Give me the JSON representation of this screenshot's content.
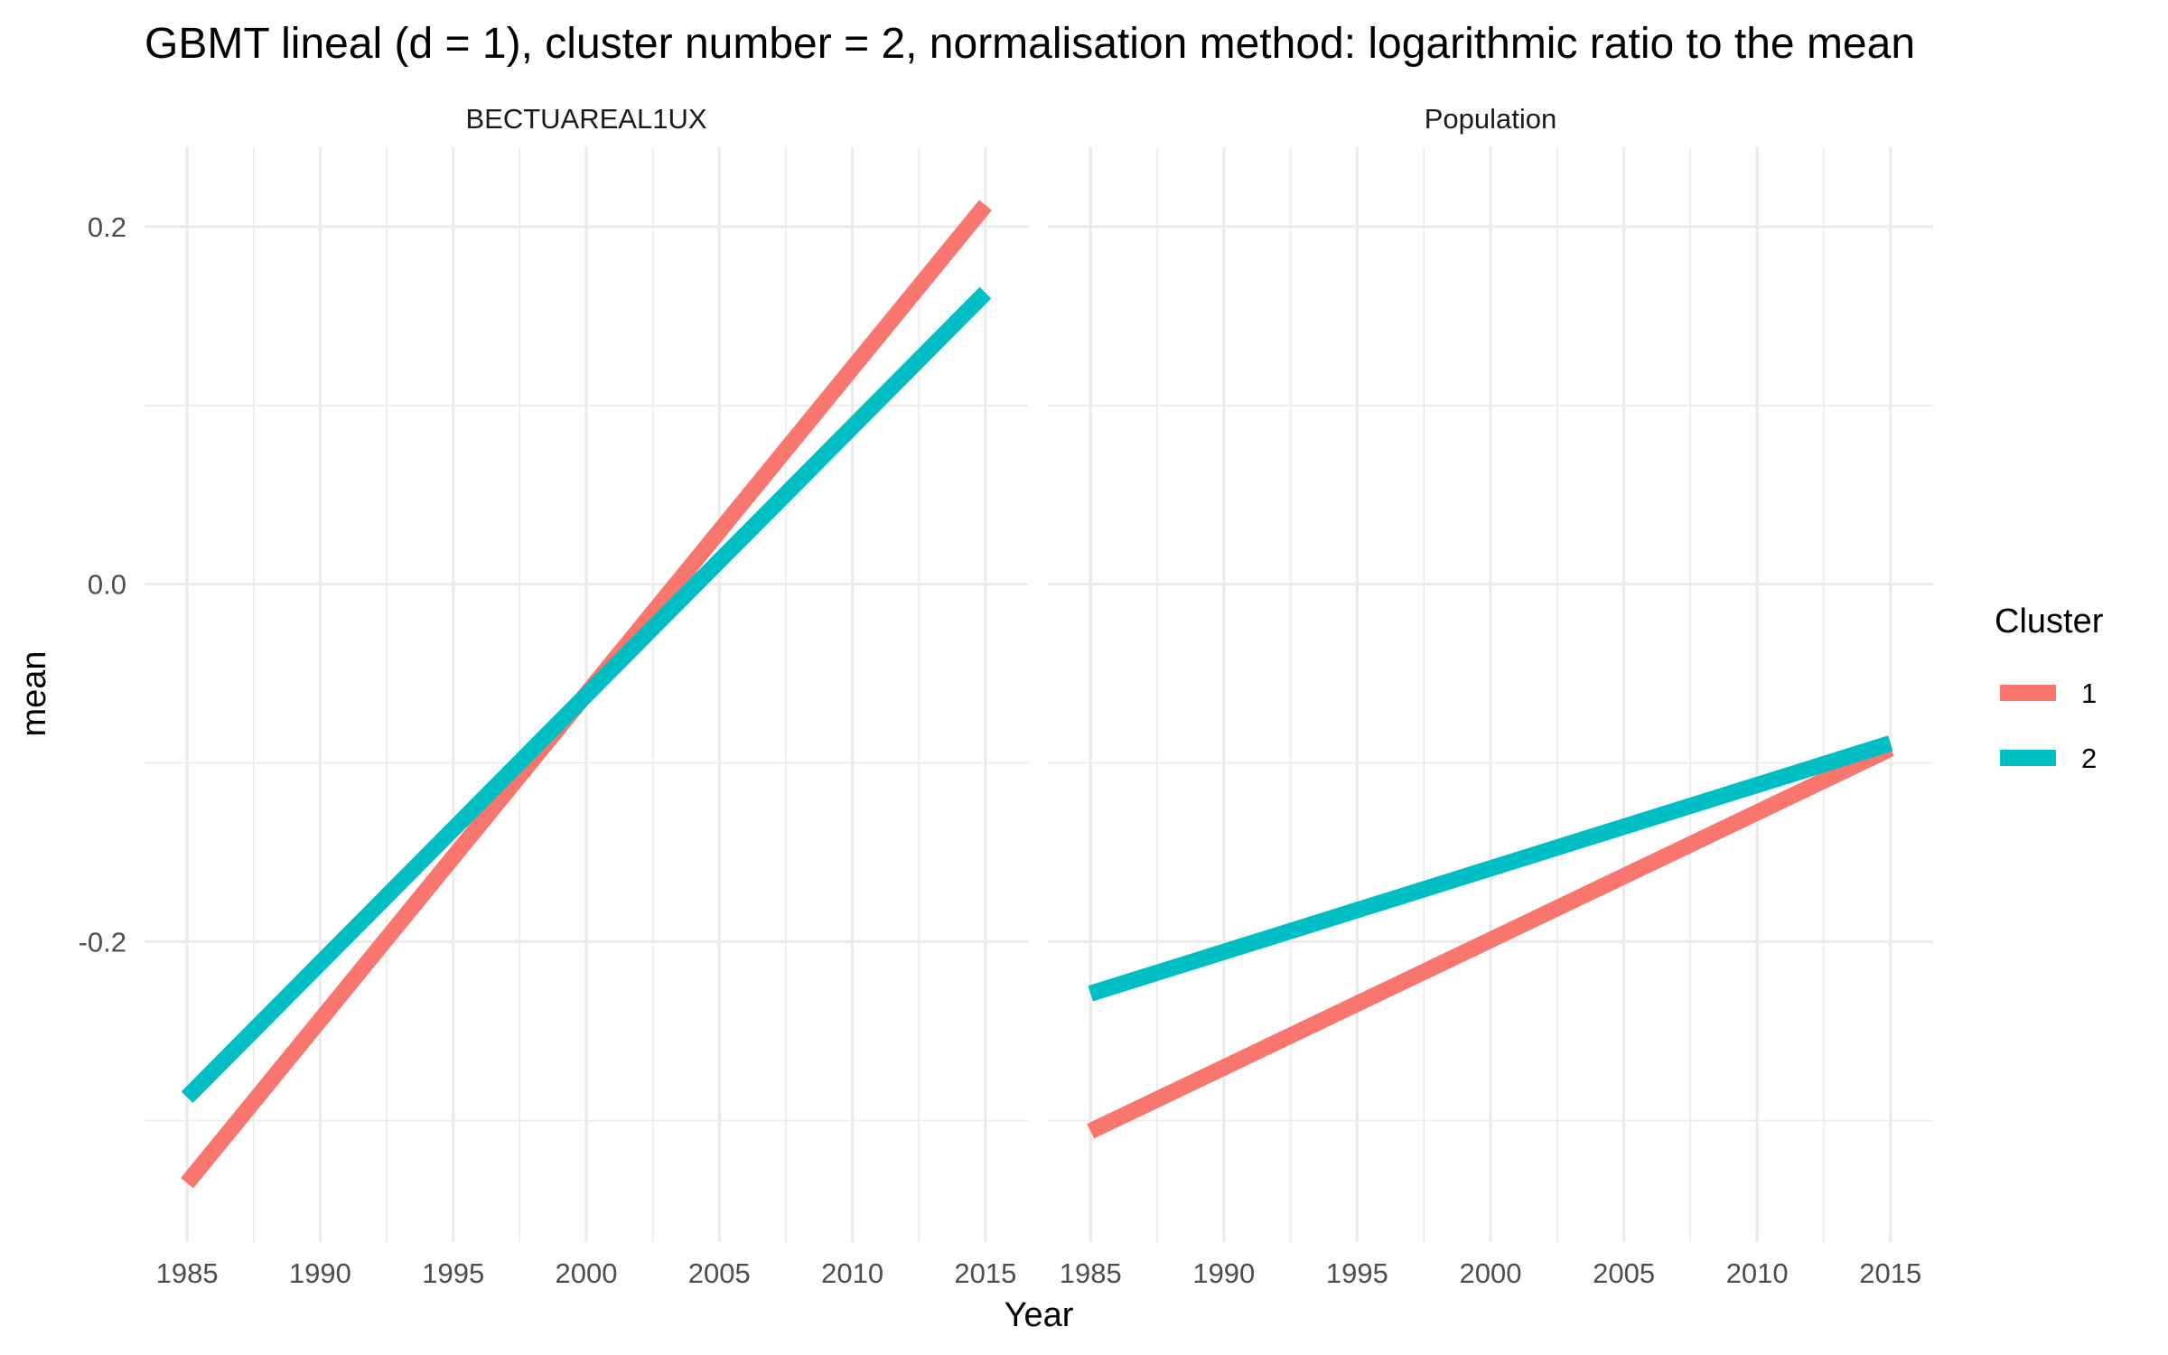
{
  "chart_data": {
    "type": "line",
    "title": "GBMT lineal (d = 1), cluster number = 2, normalisation method: logarithmic ratio to the mean",
    "xlabel": "Year",
    "ylabel": "mean",
    "xlim": [
      1983.4,
      2016.6
    ],
    "ylim": [
      -0.368,
      0.2444
    ],
    "x_ticks": [
      1985,
      1990,
      1995,
      2000,
      2005,
      2010,
      2015
    ],
    "y_ticks": [
      0.2,
      0.0,
      -0.2
    ],
    "y_tick_labels": [
      "0.2",
      "0.0",
      "-0.2"
    ],
    "grid": true,
    "legend": {
      "title": "Cluster",
      "position": "right",
      "items": [
        {
          "label": "1",
          "color": "#F8766D"
        },
        {
          "label": "2",
          "color": "#00BFC4"
        }
      ]
    },
    "facets": [
      {
        "strip": "BECTUAREAL1UX",
        "series": [
          {
            "name": "1",
            "color": "#F8766D",
            "x": [
              1985,
              2015
            ],
            "y": [
              -0.335,
              0.212
            ]
          },
          {
            "name": "2",
            "color": "#00BFC4",
            "x": [
              1985,
              2015
            ],
            "y": [
              -0.287,
              0.163
            ]
          }
        ]
      },
      {
        "strip": "Population",
        "series": [
          {
            "name": "1",
            "color": "#F8766D",
            "x": [
              1985,
              2015
            ],
            "y": [
              -0.306,
              -0.092
            ]
          },
          {
            "name": "2",
            "color": "#00BFC4",
            "x": [
              1985,
              2015
            ],
            "y": [
              -0.229,
              -0.089
            ]
          }
        ]
      }
    ]
  }
}
